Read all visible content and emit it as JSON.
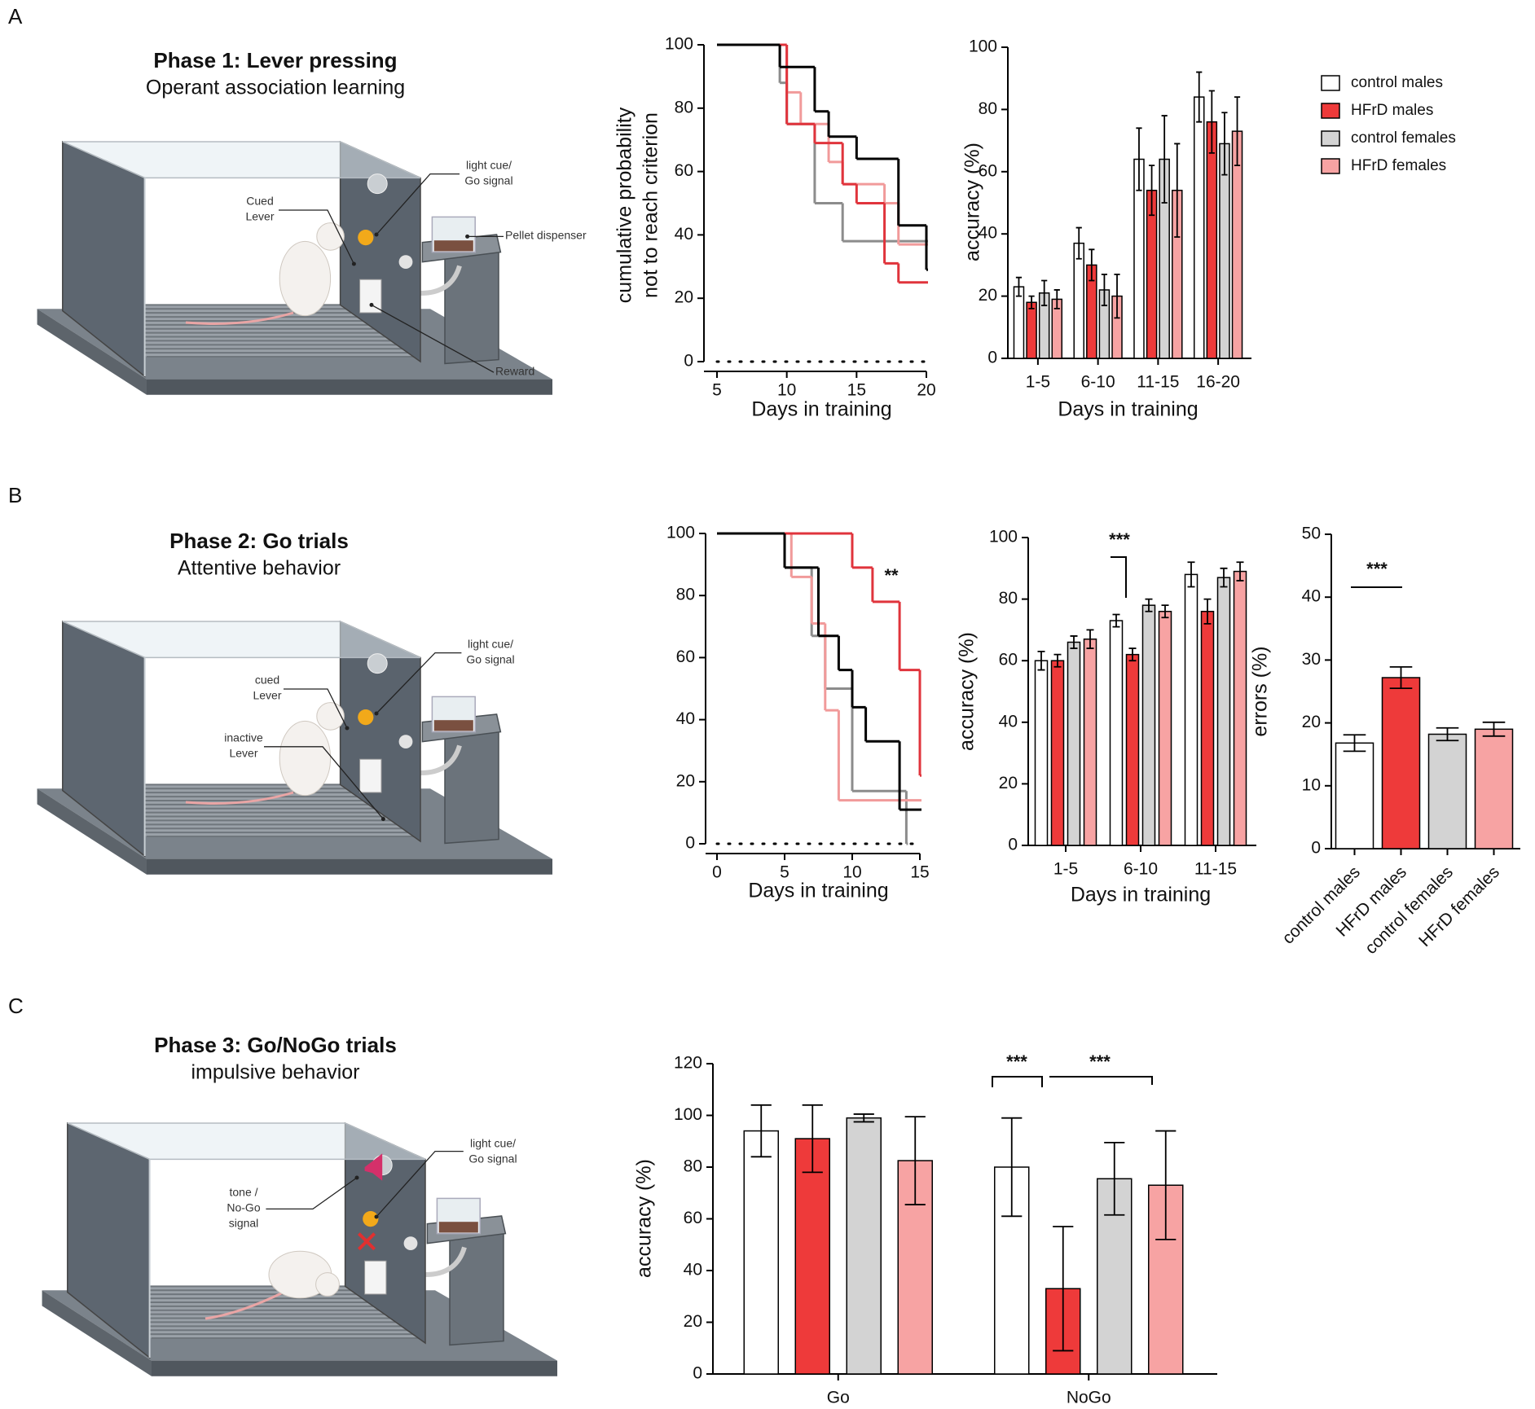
{
  "panels": [
    {
      "label": "A",
      "diagram": {
        "title": "Phase 1: Lever pressing",
        "subtitle": "Operant association learning",
        "callouts": [
          [
            "light cue/",
            "Go signal"
          ],
          [
            "Cued",
            "Lever"
          ],
          [
            "Pellet dispenser"
          ],
          [
            "Reward"
          ]
        ]
      }
    },
    {
      "label": "B",
      "diagram": {
        "title": "Phase 2: Go trials",
        "subtitle": "Attentive behavior",
        "callouts": [
          [
            "light cue/",
            "Go signal"
          ],
          [
            "cued",
            "Lever"
          ],
          [
            "inactive",
            "Lever"
          ]
        ]
      }
    },
    {
      "label": "C",
      "diagram": {
        "title": "Phase 3: Go/NoGo trials",
        "subtitle": "impulsive behavior",
        "callouts": [
          [
            "light cue/",
            "Go signal"
          ],
          [
            "tone /",
            "No-Go",
            "signal"
          ]
        ]
      }
    }
  ],
  "chart_data": [
    {
      "type": "step",
      "ylabel": [
        "cumulative probability",
        "not to reach criterion"
      ],
      "xlabel": "Days in training",
      "xlim": [
        5,
        20
      ],
      "xticks": [
        5,
        10,
        15,
        20
      ],
      "ylim": [
        0,
        100
      ],
      "yticks": [
        0,
        20,
        40,
        60,
        80,
        100
      ],
      "series": [
        {
          "color": "#8c8c8c",
          "x": [
            5,
            9.5,
            10,
            12,
            14,
            20
          ],
          "values": [
            100,
            88,
            75,
            50,
            38,
            38
          ]
        },
        {
          "color": "#f19a9a",
          "x": [
            5,
            10,
            11,
            13,
            14,
            17,
            18,
            20
          ],
          "values": [
            100,
            85,
            75,
            63,
            56,
            50,
            37,
            37
          ]
        },
        {
          "color": "#e0343c",
          "x": [
            5,
            10,
            12,
            14,
            15,
            17,
            18,
            20
          ],
          "values": [
            100,
            75,
            69,
            56,
            50,
            31,
            25,
            25
          ]
        },
        {
          "color": "#000000",
          "x": [
            5,
            9.5,
            12,
            13,
            15,
            18,
            20
          ],
          "values": [
            100,
            93,
            79,
            71,
            64,
            43,
            29
          ]
        }
      ]
    },
    {
      "type": "bar",
      "ylabel": "accuracy (%)",
      "xlabel": "Days in training",
      "categories": [
        "1-5",
        "6-10",
        "11-15",
        "16-20"
      ],
      "ylim": [
        0,
        100
      ],
      "yticks": [
        0,
        20,
        40,
        60,
        80,
        100
      ],
      "legend": "upper right",
      "series": [
        {
          "name": "control males",
          "color": "#ffffff",
          "values": [
            23,
            37,
            64,
            84
          ],
          "errors": [
            3,
            5,
            10,
            8
          ]
        },
        {
          "name": "HFrD males",
          "color": "#ee3a3a",
          "values": [
            18,
            30,
            54,
            76
          ],
          "errors": [
            2,
            5,
            8,
            10
          ]
        },
        {
          "name": "control females",
          "color": "#d3d3d3",
          "values": [
            21,
            22,
            64,
            69
          ],
          "errors": [
            4,
            5,
            14,
            10
          ]
        },
        {
          "name": "HFrD females",
          "color": "#f7a3a3",
          "values": [
            19,
            20,
            54,
            73
          ],
          "errors": [
            3,
            7,
            15,
            11
          ]
        }
      ]
    },
    {
      "type": "step",
      "xlabel": "Days in training",
      "annotations": [
        "**"
      ],
      "xlim": [
        0,
        15
      ],
      "xticks": [
        0,
        5,
        10,
        15
      ],
      "ylim": [
        0,
        100
      ],
      "yticks": [
        0,
        20,
        40,
        60,
        80,
        100
      ],
      "series": [
        {
          "color": "#8c8c8c",
          "x": [
            0,
            5,
            7,
            8,
            10,
            14
          ],
          "values": [
            100,
            89,
            67,
            50,
            17,
            0
          ]
        },
        {
          "color": "#f19a9a",
          "x": [
            0,
            5.5,
            7,
            8,
            9,
            15
          ],
          "values": [
            100,
            86,
            71,
            43,
            14,
            14
          ]
        },
        {
          "color": "#e0343c",
          "x": [
            0,
            10,
            11.5,
            13.5,
            15
          ],
          "values": [
            100,
            89,
            78,
            56,
            22
          ]
        },
        {
          "color": "#000000",
          "x": [
            0,
            5,
            7.5,
            9,
            10,
            11,
            13.5,
            15
          ],
          "values": [
            100,
            89,
            67,
            56,
            44,
            33,
            11,
            11
          ]
        }
      ]
    },
    {
      "type": "bar",
      "ylabel": "accuracy (%)",
      "xlabel": "Days in training",
      "annotations": [
        "***"
      ],
      "categories": [
        "1-5",
        "6-10",
        "11-15"
      ],
      "ylim": [
        0,
        100
      ],
      "yticks": [
        0,
        20,
        40,
        60,
        80,
        100
      ],
      "series": [
        {
          "color": "#ffffff",
          "values": [
            60,
            73,
            88
          ],
          "errors": [
            3,
            2,
            4
          ]
        },
        {
          "color": "#ee3a3a",
          "values": [
            60,
            62,
            76
          ],
          "errors": [
            2,
            2,
            4
          ]
        },
        {
          "color": "#d3d3d3",
          "values": [
            66,
            78,
            87
          ],
          "errors": [
            2,
            2,
            3
          ]
        },
        {
          "color": "#f7a3a3",
          "values": [
            67,
            76,
            89
          ],
          "errors": [
            3,
            2,
            3
          ]
        }
      ]
    },
    {
      "type": "bar",
      "ylabel": "errors (%)",
      "annotations": [
        "***"
      ],
      "categories": [
        "control males",
        "HFrD males",
        "control females",
        "HFrD females"
      ],
      "colors": [
        "#ffffff",
        "#ee3a3a",
        "#d3d3d3",
        "#f7a3a3"
      ],
      "values": [
        16.8,
        27.2,
        18.2,
        19.0
      ],
      "errors": [
        1.3,
        1.7,
        1.0,
        1.1
      ],
      "ylim": [
        0,
        50
      ],
      "yticks": [
        0,
        10,
        20,
        30,
        40,
        50
      ]
    },
    {
      "type": "bar",
      "ylabel": "accuracy (%)",
      "annotations": [
        "***",
        "***"
      ],
      "categories": [
        "Go",
        "NoGo"
      ],
      "ylim": [
        0,
        120
      ],
      "yticks": [
        0,
        20,
        40,
        60,
        80,
        100,
        120
      ],
      "series": [
        {
          "color": "#ffffff",
          "values": [
            94,
            80
          ],
          "errors": [
            10,
            19
          ]
        },
        {
          "color": "#ee3a3a",
          "values": [
            91,
            33
          ],
          "errors": [
            13,
            24
          ]
        },
        {
          "color": "#d3d3d3",
          "values": [
            99,
            75.5
          ],
          "errors": [
            1.5,
            14
          ]
        },
        {
          "color": "#f7a3a3",
          "values": [
            82.5,
            73
          ],
          "errors": [
            17,
            21
          ]
        }
      ]
    }
  ]
}
